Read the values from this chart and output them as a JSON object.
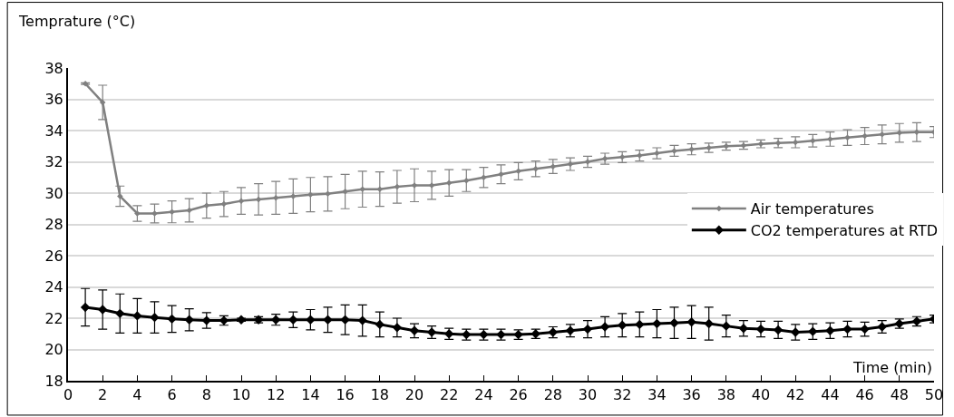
{
  "chart_data": {
    "type": "line",
    "xlabel": "Time (min)",
    "ylabel": "Temprature (°C)",
    "x": [
      1,
      2,
      3,
      4,
      5,
      6,
      7,
      8,
      9,
      10,
      11,
      12,
      13,
      14,
      15,
      16,
      17,
      18,
      19,
      20,
      21,
      22,
      23,
      24,
      25,
      26,
      27,
      28,
      29,
      30,
      31,
      32,
      33,
      34,
      35,
      36,
      37,
      38,
      39,
      40,
      41,
      42,
      43,
      44,
      45,
      46,
      47,
      48,
      49,
      50
    ],
    "xlim": [
      0,
      50
    ],
    "xticks": [
      0,
      2,
      4,
      6,
      8,
      10,
      12,
      14,
      16,
      18,
      20,
      22,
      24,
      26,
      28,
      30,
      32,
      34,
      36,
      38,
      40,
      42,
      44,
      46,
      48,
      50
    ],
    "ylim": [
      18,
      38
    ],
    "yticks": [
      18,
      20,
      22,
      24,
      26,
      28,
      30,
      32,
      34,
      36,
      38
    ],
    "grid": "y",
    "legend": "right",
    "marker": "diamond",
    "line_style": "solid",
    "series": [
      {
        "name": "Air temperatures",
        "color": "#808080",
        "values": [
          37.0,
          35.8,
          29.8,
          28.7,
          28.7,
          28.8,
          28.9,
          29.2,
          29.3,
          29.5,
          29.6,
          29.7,
          29.8,
          29.9,
          29.95,
          30.1,
          30.25,
          30.25,
          30.4,
          30.5,
          30.5,
          30.65,
          30.8,
          31.0,
          31.2,
          31.4,
          31.55,
          31.7,
          31.85,
          32.0,
          32.2,
          32.3,
          32.4,
          32.55,
          32.7,
          32.8,
          32.9,
          33.0,
          33.05,
          33.15,
          33.2,
          33.25,
          33.35,
          33.45,
          33.55,
          33.65,
          33.75,
          33.85,
          33.9,
          33.9
        ],
        "errors": [
          0.05,
          1.1,
          0.65,
          0.5,
          0.6,
          0.7,
          0.75,
          0.8,
          0.8,
          0.85,
          1.0,
          1.05,
          1.1,
          1.1,
          1.1,
          1.1,
          1.15,
          1.1,
          1.05,
          1.05,
          0.9,
          0.85,
          0.7,
          0.65,
          0.6,
          0.55,
          0.5,
          0.45,
          0.4,
          0.35,
          0.35,
          0.35,
          0.35,
          0.35,
          0.35,
          0.35,
          0.3,
          0.25,
          0.25,
          0.25,
          0.3,
          0.35,
          0.4,
          0.45,
          0.5,
          0.55,
          0.6,
          0.6,
          0.6,
          0.35
        ]
      },
      {
        "name": "CO2 temperatures at RTD",
        "color": "#000000",
        "values": [
          22.7,
          22.55,
          22.3,
          22.15,
          22.05,
          21.95,
          21.9,
          21.85,
          21.85,
          21.9,
          21.9,
          21.9,
          21.9,
          21.9,
          21.9,
          21.9,
          21.85,
          21.6,
          21.4,
          21.2,
          21.1,
          21.0,
          20.95,
          20.95,
          20.95,
          20.95,
          21.0,
          21.1,
          21.2,
          21.3,
          21.45,
          21.55,
          21.6,
          21.65,
          21.7,
          21.75,
          21.65,
          21.5,
          21.35,
          21.3,
          21.25,
          21.1,
          21.15,
          21.2,
          21.3,
          21.3,
          21.45,
          21.65,
          21.8,
          21.95
        ],
        "errors": [
          1.2,
          1.25,
          1.25,
          1.1,
          1.0,
          0.85,
          0.7,
          0.5,
          0.3,
          0.1,
          0.2,
          0.35,
          0.5,
          0.65,
          0.8,
          0.95,
          1.0,
          0.8,
          0.6,
          0.45,
          0.4,
          0.35,
          0.35,
          0.35,
          0.35,
          0.3,
          0.3,
          0.35,
          0.4,
          0.55,
          0.65,
          0.75,
          0.8,
          0.9,
          1.0,
          1.05,
          1.05,
          0.7,
          0.5,
          0.5,
          0.55,
          0.5,
          0.5,
          0.5,
          0.5,
          0.45,
          0.4,
          0.3,
          0.3,
          0.25
        ]
      }
    ]
  }
}
